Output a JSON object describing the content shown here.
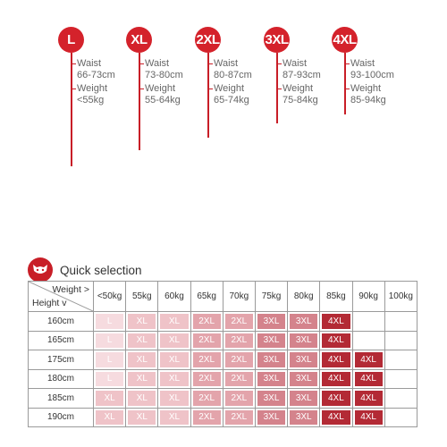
{
  "sizes": [
    {
      "label": "L",
      "waist_title": "Waist",
      "waist": "66-73cm",
      "weight_title": "Weight",
      "weight": "<55kg"
    },
    {
      "label": "XL",
      "waist_title": "Waist",
      "waist": "73-80cm",
      "weight_title": "Weight",
      "weight": "55-64kg"
    },
    {
      "label": "2XL",
      "waist_title": "Waist",
      "waist": "80-87cm",
      "weight_title": "Weight",
      "weight": "65-74kg"
    },
    {
      "label": "3XL",
      "waist_title": "Waist",
      "waist": "87-93cm",
      "weight_title": "Weight",
      "weight": "75-84kg"
    },
    {
      "label": "4XL",
      "waist_title": "Waist",
      "waist": "93-100cm",
      "weight_title": "Weight",
      "weight": "85-94kg"
    }
  ],
  "quick_selection": {
    "title": "Quick selection",
    "logo_icon": "cat-logo-icon",
    "corner_weight": "Weight >",
    "corner_height": "Height v",
    "weights": [
      "<50kg",
      "55kg",
      "60kg",
      "65kg",
      "70kg",
      "75kg",
      "80kg",
      "85kg",
      "90kg",
      "100kg"
    ],
    "rows": [
      {
        "height": "160cm",
        "cells": [
          "L",
          "XL",
          "XL",
          "2XL",
          "2XL",
          "3XL",
          "3XL",
          "4XL",
          "",
          ""
        ]
      },
      {
        "height": "165cm",
        "cells": [
          "L",
          "XL",
          "XL",
          "2XL",
          "2XL",
          "3XL",
          "3XL",
          "4XL",
          "",
          ""
        ]
      },
      {
        "height": "175cm",
        "cells": [
          "L",
          "XL",
          "XL",
          "2XL",
          "2XL",
          "3XL",
          "3XL",
          "4XL",
          "4XL",
          ""
        ]
      },
      {
        "height": "180cm",
        "cells": [
          "L",
          "XL",
          "XL",
          "2XL",
          "2XL",
          "3XL",
          "3XL",
          "4XL",
          "4XL",
          ""
        ]
      },
      {
        "height": "185cm",
        "cells": [
          "XL",
          "XL",
          "XL",
          "2XL",
          "2XL",
          "3XL",
          "3XL",
          "4XL",
          "4XL",
          ""
        ]
      },
      {
        "height": "190cm",
        "cells": [
          "XL",
          "XL",
          "XL",
          "2XL",
          "2XL",
          "3XL",
          "3XL",
          "4XL",
          "4XL",
          ""
        ]
      }
    ]
  },
  "colors": {
    "accent": "#d4222b",
    "L": "#f6dbdf",
    "XL_light": "#efc3c8",
    "2XL": "#e3a4ab",
    "3XL": "#d4838c",
    "4XL": "#b32a35"
  }
}
